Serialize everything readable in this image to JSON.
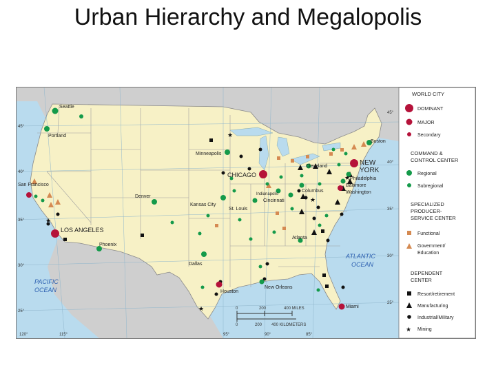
{
  "title": "Urban Hierarchy and Megalopolis",
  "colors": {
    "ocean": "#b9dbee",
    "land": "#f7f1c6",
    "neighbor": "#cfcfcf",
    "dominant": "#b5123a",
    "regional": "#149a4a",
    "functional": "#d58a52",
    "black": "#111111"
  },
  "map": {
    "ocean_labels": [
      {
        "line1": "PACIFIC",
        "line2": "OCEAN"
      },
      {
        "line1": "ATLANTIC",
        "line2": "OCEAN"
      }
    ],
    "lat_labels": [
      "45°",
      "40°",
      "35°",
      "30°",
      "25°",
      "45°",
      "40°",
      "35°",
      "30°",
      "25°"
    ],
    "lon_labels": [
      "120°",
      "115°",
      "95°",
      "90°",
      "85°"
    ],
    "scale": {
      "miles_ticks": [
        "0",
        "200",
        "400 MILES"
      ],
      "km_ticks": [
        "0",
        "200",
        "400 KILOMETERS"
      ]
    },
    "cities": [
      {
        "name": "Seattle",
        "type": "regional"
      },
      {
        "name": "Portland",
        "type": "regional"
      },
      {
        "name": "San Francisco",
        "type": "major"
      },
      {
        "name": "LOS ANGELES",
        "type": "dominant"
      },
      {
        "name": "Phoenix",
        "type": "regional"
      },
      {
        "name": "Denver",
        "type": "regional"
      },
      {
        "name": "Minneapolis",
        "type": "regional"
      },
      {
        "name": "Kansas City",
        "type": "regional"
      },
      {
        "name": "Dallas",
        "type": "regional"
      },
      {
        "name": "Houston",
        "type": "major"
      },
      {
        "name": "CHICAGO",
        "type": "dominant"
      },
      {
        "name": "St. Louis",
        "type": "regional"
      },
      {
        "name": "Indianapolis",
        "type": "regional"
      },
      {
        "name": "Cincinnati",
        "type": "regional"
      },
      {
        "name": "Columbus",
        "type": "regional"
      },
      {
        "name": "Cleveland",
        "type": "regional"
      },
      {
        "name": "Atlanta",
        "type": "regional"
      },
      {
        "name": "New Orleans",
        "type": "regional"
      },
      {
        "name": "Miami",
        "type": "major"
      },
      {
        "name": "Boston",
        "type": "regional"
      },
      {
        "name": "NEW",
        "type": "dominant"
      },
      {
        "name": "YORK",
        "type": "label"
      },
      {
        "name": "Philadelphia",
        "type": "regional"
      },
      {
        "name": "Baltimore",
        "type": "regional"
      },
      {
        "name": "Washington",
        "type": "major"
      }
    ]
  },
  "legend": {
    "world_city": {
      "title": "WORLD CITY",
      "items": [
        {
          "label": "DOMINANT",
          "symbol": "big-circle"
        },
        {
          "label": "MAJOR",
          "symbol": "mid-circle"
        },
        {
          "label": "Secondary",
          "symbol": "small-circle"
        }
      ]
    },
    "command": {
      "title_line1": "COMMAND &",
      "title_line2": "CONTROL CENTER",
      "items": [
        {
          "label": "Regional",
          "symbol": "green-circle"
        },
        {
          "label": "Subregional",
          "symbol": "small-green-circle"
        }
      ]
    },
    "specialized": {
      "title_line1": "SPECIALIZED",
      "title_line2": "PRODUCER-",
      "title_line3": "SERVICE CENTER",
      "items": [
        {
          "label": "Functional",
          "symbol": "orange-square"
        },
        {
          "label_line1": "Government/",
          "label_line2": "Education",
          "symbol": "orange-triangle"
        }
      ]
    },
    "dependent": {
      "title_line1": "DEPENDENT",
      "title_line2": "CENTER",
      "items": [
        {
          "label": "Resort/retirement",
          "symbol": "black-square"
        },
        {
          "label": "Manufacturing",
          "symbol": "black-triangle"
        },
        {
          "label": "Industrial/Military",
          "symbol": "black-dot"
        },
        {
          "label": "Mining",
          "symbol": "black-star"
        }
      ]
    }
  }
}
